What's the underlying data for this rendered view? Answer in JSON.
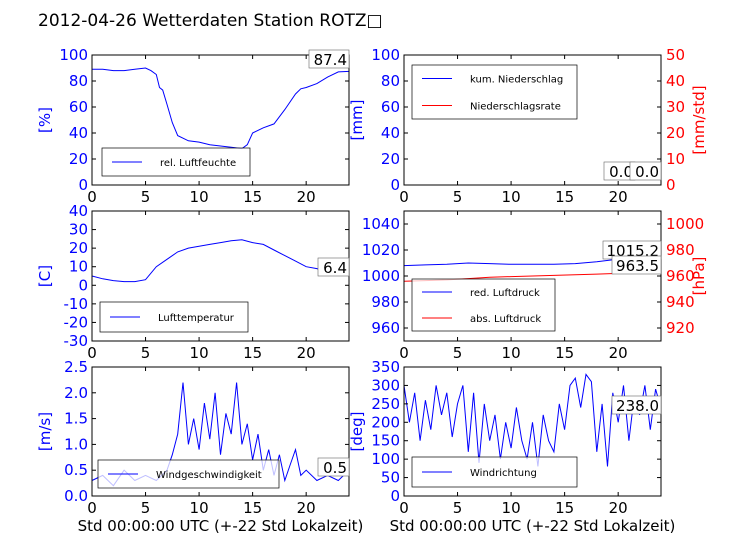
{
  "page_title": "2012-04-26 Wetterdaten Station ROTZ□",
  "colors": {
    "primary": "#0000ff",
    "secondary": "#ff0000",
    "axis": "#000000"
  },
  "chart_data": [
    {
      "type": "line",
      "id": "humidity",
      "ylabel": "[%]",
      "xlim": [
        0,
        24
      ],
      "ylim": [
        0,
        100
      ],
      "yticks": [
        0,
        20,
        40,
        60,
        80,
        100
      ],
      "xticks": [
        0,
        5,
        10,
        15,
        20
      ],
      "legend_position": "lower-left",
      "annotations": [
        "87.4"
      ],
      "series": [
        {
          "name": "rel. Luftfeuchte",
          "color": "#0000ff",
          "x": [
            0,
            1,
            2,
            3,
            4,
            5,
            5.5,
            6,
            6.3,
            6.6,
            7,
            7.5,
            8,
            9,
            10,
            11,
            12,
            13,
            14,
            14.5,
            15,
            16,
            17,
            18,
            19,
            19.5,
            20,
            21,
            22,
            23,
            24
          ],
          "y": [
            89,
            89,
            88,
            88,
            89,
            90,
            88,
            85,
            75,
            73,
            62,
            48,
            38,
            34,
            33,
            31,
            30,
            29,
            28,
            31,
            40,
            44,
            47,
            58,
            70,
            74,
            75,
            78,
            83,
            87,
            87.4
          ]
        }
      ]
    },
    {
      "type": "line",
      "id": "precipitation",
      "ylabel": "[mm]",
      "ylabel_right": "[mm/std]",
      "xlim": [
        0,
        24
      ],
      "ylim": [
        0,
        100
      ],
      "ylim_right": [
        0,
        50
      ],
      "yticks": [
        0,
        20,
        40,
        60,
        80,
        100
      ],
      "yticks_right": [
        0,
        10,
        20,
        30,
        40,
        50
      ],
      "xticks": [
        0,
        5,
        10,
        15,
        20
      ],
      "legend_position": "upper-left",
      "annotations": [
        "0.0",
        "0.0"
      ],
      "series": [
        {
          "name": "kum. Niederschlag",
          "color": "#0000ff",
          "x": [
            0,
            24
          ],
          "y": [
            0,
            0
          ]
        },
        {
          "name": "Niederschlagsrate",
          "color": "#ff0000",
          "axis": "right",
          "x": [
            0,
            24
          ],
          "y": [
            0,
            0
          ]
        }
      ]
    },
    {
      "type": "line",
      "id": "temperature",
      "ylabel": "[C]",
      "xlim": [
        0,
        24
      ],
      "ylim": [
        -30,
        40
      ],
      "yticks": [
        -30,
        -20,
        -10,
        0,
        10,
        20,
        30,
        40
      ],
      "xticks": [
        0,
        5,
        10,
        15,
        20
      ],
      "legend_position": "lower-left",
      "annotations": [
        "6.4"
      ],
      "series": [
        {
          "name": "Lufttemperatur",
          "color": "#0000ff",
          "x": [
            0,
            1,
            2,
            3,
            4,
            5,
            6,
            7,
            8,
            9,
            10,
            11,
            12,
            13,
            14,
            15,
            16,
            17,
            18,
            19,
            20,
            21,
            22,
            23,
            24
          ],
          "y": [
            5,
            3.5,
            2.5,
            2,
            2,
            3,
            10,
            14,
            18,
            20,
            21,
            22,
            23,
            24,
            24.5,
            23,
            22,
            19,
            16,
            13,
            10,
            9,
            7,
            6.5,
            6.4
          ]
        }
      ]
    },
    {
      "type": "line",
      "id": "pressure",
      "ylabel_right": "[hPa]",
      "xlim": [
        0,
        24
      ],
      "ylim": [
        950,
        1050
      ],
      "ylim_right": [
        910,
        1010
      ],
      "yticks": [
        960,
        980,
        1000,
        1020,
        1040
      ],
      "yticks_right": [
        920,
        940,
        960,
        980,
        1000
      ],
      "xticks": [
        0,
        5,
        10,
        15,
        20
      ],
      "legend_position": "lower-left",
      "annotations": [
        "1015.2",
        "963.5"
      ],
      "series": [
        {
          "name": "red. Luftdruck",
          "color": "#0000ff",
          "x": [
            0,
            2,
            4,
            6,
            8,
            10,
            12,
            14,
            16,
            18,
            20,
            22,
            24
          ],
          "y": [
            1008,
            1008.5,
            1009,
            1010,
            1009.5,
            1009,
            1009,
            1009,
            1009.5,
            1011,
            1013,
            1014.5,
            1015.2
          ]
        },
        {
          "name": "abs. Luftdruck",
          "color": "#ff0000",
          "axis": "right",
          "x": [
            0,
            2,
            4,
            6,
            8,
            10,
            12,
            14,
            16,
            18,
            20,
            22,
            24
          ],
          "y": [
            956,
            956.5,
            957,
            958,
            959,
            959.5,
            960,
            960.5,
            961,
            961.5,
            962,
            963,
            963.5
          ]
        }
      ]
    },
    {
      "type": "line",
      "id": "wind-speed",
      "ylabel": "[m/s]",
      "xlabel": "Std 00:00:00 UTC (+-22 Std Lokalzeit)",
      "xlim": [
        0,
        24
      ],
      "ylim": [
        0,
        2.5
      ],
      "yticks": [
        0.0,
        0.5,
        1.0,
        1.5,
        2.0,
        2.5
      ],
      "xticks": [
        0,
        5,
        10,
        15,
        20
      ],
      "legend_position": "lower-left",
      "annotations": [
        "0.5"
      ],
      "series": [
        {
          "name": "Windgeschwindigkeit",
          "color": "#0000ff",
          "x": [
            0,
            1,
            2,
            3,
            4,
            5,
            6,
            7,
            7.5,
            8,
            8.5,
            9,
            9.5,
            10,
            10.5,
            11,
            11.5,
            12,
            12.5,
            13,
            13.5,
            14,
            14.5,
            15,
            15.5,
            16,
            16.5,
            17,
            17.5,
            18,
            18.5,
            19,
            19.5,
            20,
            21,
            22,
            23,
            24
          ],
          "y": [
            0.3,
            0.4,
            0.2,
            0.5,
            0.3,
            0.4,
            0.3,
            0.5,
            0.8,
            1.2,
            2.2,
            1.0,
            1.5,
            0.9,
            1.8,
            1.1,
            2.0,
            0.8,
            1.6,
            1.2,
            2.2,
            1.0,
            1.4,
            0.7,
            1.2,
            0.5,
            0.9,
            0.4,
            0.8,
            0.3,
            0.6,
            0.9,
            0.4,
            0.5,
            0.3,
            0.4,
            0.3,
            0.5
          ]
        }
      ]
    },
    {
      "type": "line",
      "id": "wind-direction",
      "ylabel": "[deg]",
      "xlabel": "Std 00:00:00 UTC (+-22 Std Lokalzeit)",
      "xlim": [
        0,
        24
      ],
      "ylim": [
        0,
        350
      ],
      "yticks": [
        0,
        50,
        100,
        150,
        200,
        250,
        300,
        350
      ],
      "xticks": [
        0,
        5,
        10,
        15,
        20
      ],
      "legend_position": "lower-left",
      "annotations": [
        "238.0"
      ],
      "series": [
        {
          "name": "Windrichtung",
          "color": "#0000ff",
          "x": [
            0,
            0.5,
            1,
            1.5,
            2,
            2.5,
            3,
            3.5,
            4,
            4.5,
            5,
            5.5,
            6,
            6.5,
            7,
            7.5,
            8,
            8.5,
            9,
            9.5,
            10,
            10.5,
            11,
            11.5,
            12,
            12.5,
            13,
            13.5,
            14,
            14.5,
            15,
            15.5,
            16,
            16.5,
            17,
            17.5,
            18,
            18.5,
            19,
            19.5,
            20,
            20.5,
            21,
            21.5,
            22,
            22.5,
            23,
            23.5,
            24
          ],
          "y": [
            300,
            200,
            280,
            150,
            260,
            180,
            300,
            220,
            280,
            160,
            250,
            300,
            120,
            280,
            90,
            250,
            150,
            220,
            100,
            200,
            130,
            240,
            150,
            100,
            200,
            80,
            220,
            150,
            120,
            250,
            180,
            300,
            320,
            240,
            330,
            310,
            120,
            250,
            80,
            280,
            200,
            300,
            150,
            270,
            220,
            300,
            180,
            290,
            238
          ]
        }
      ]
    }
  ]
}
